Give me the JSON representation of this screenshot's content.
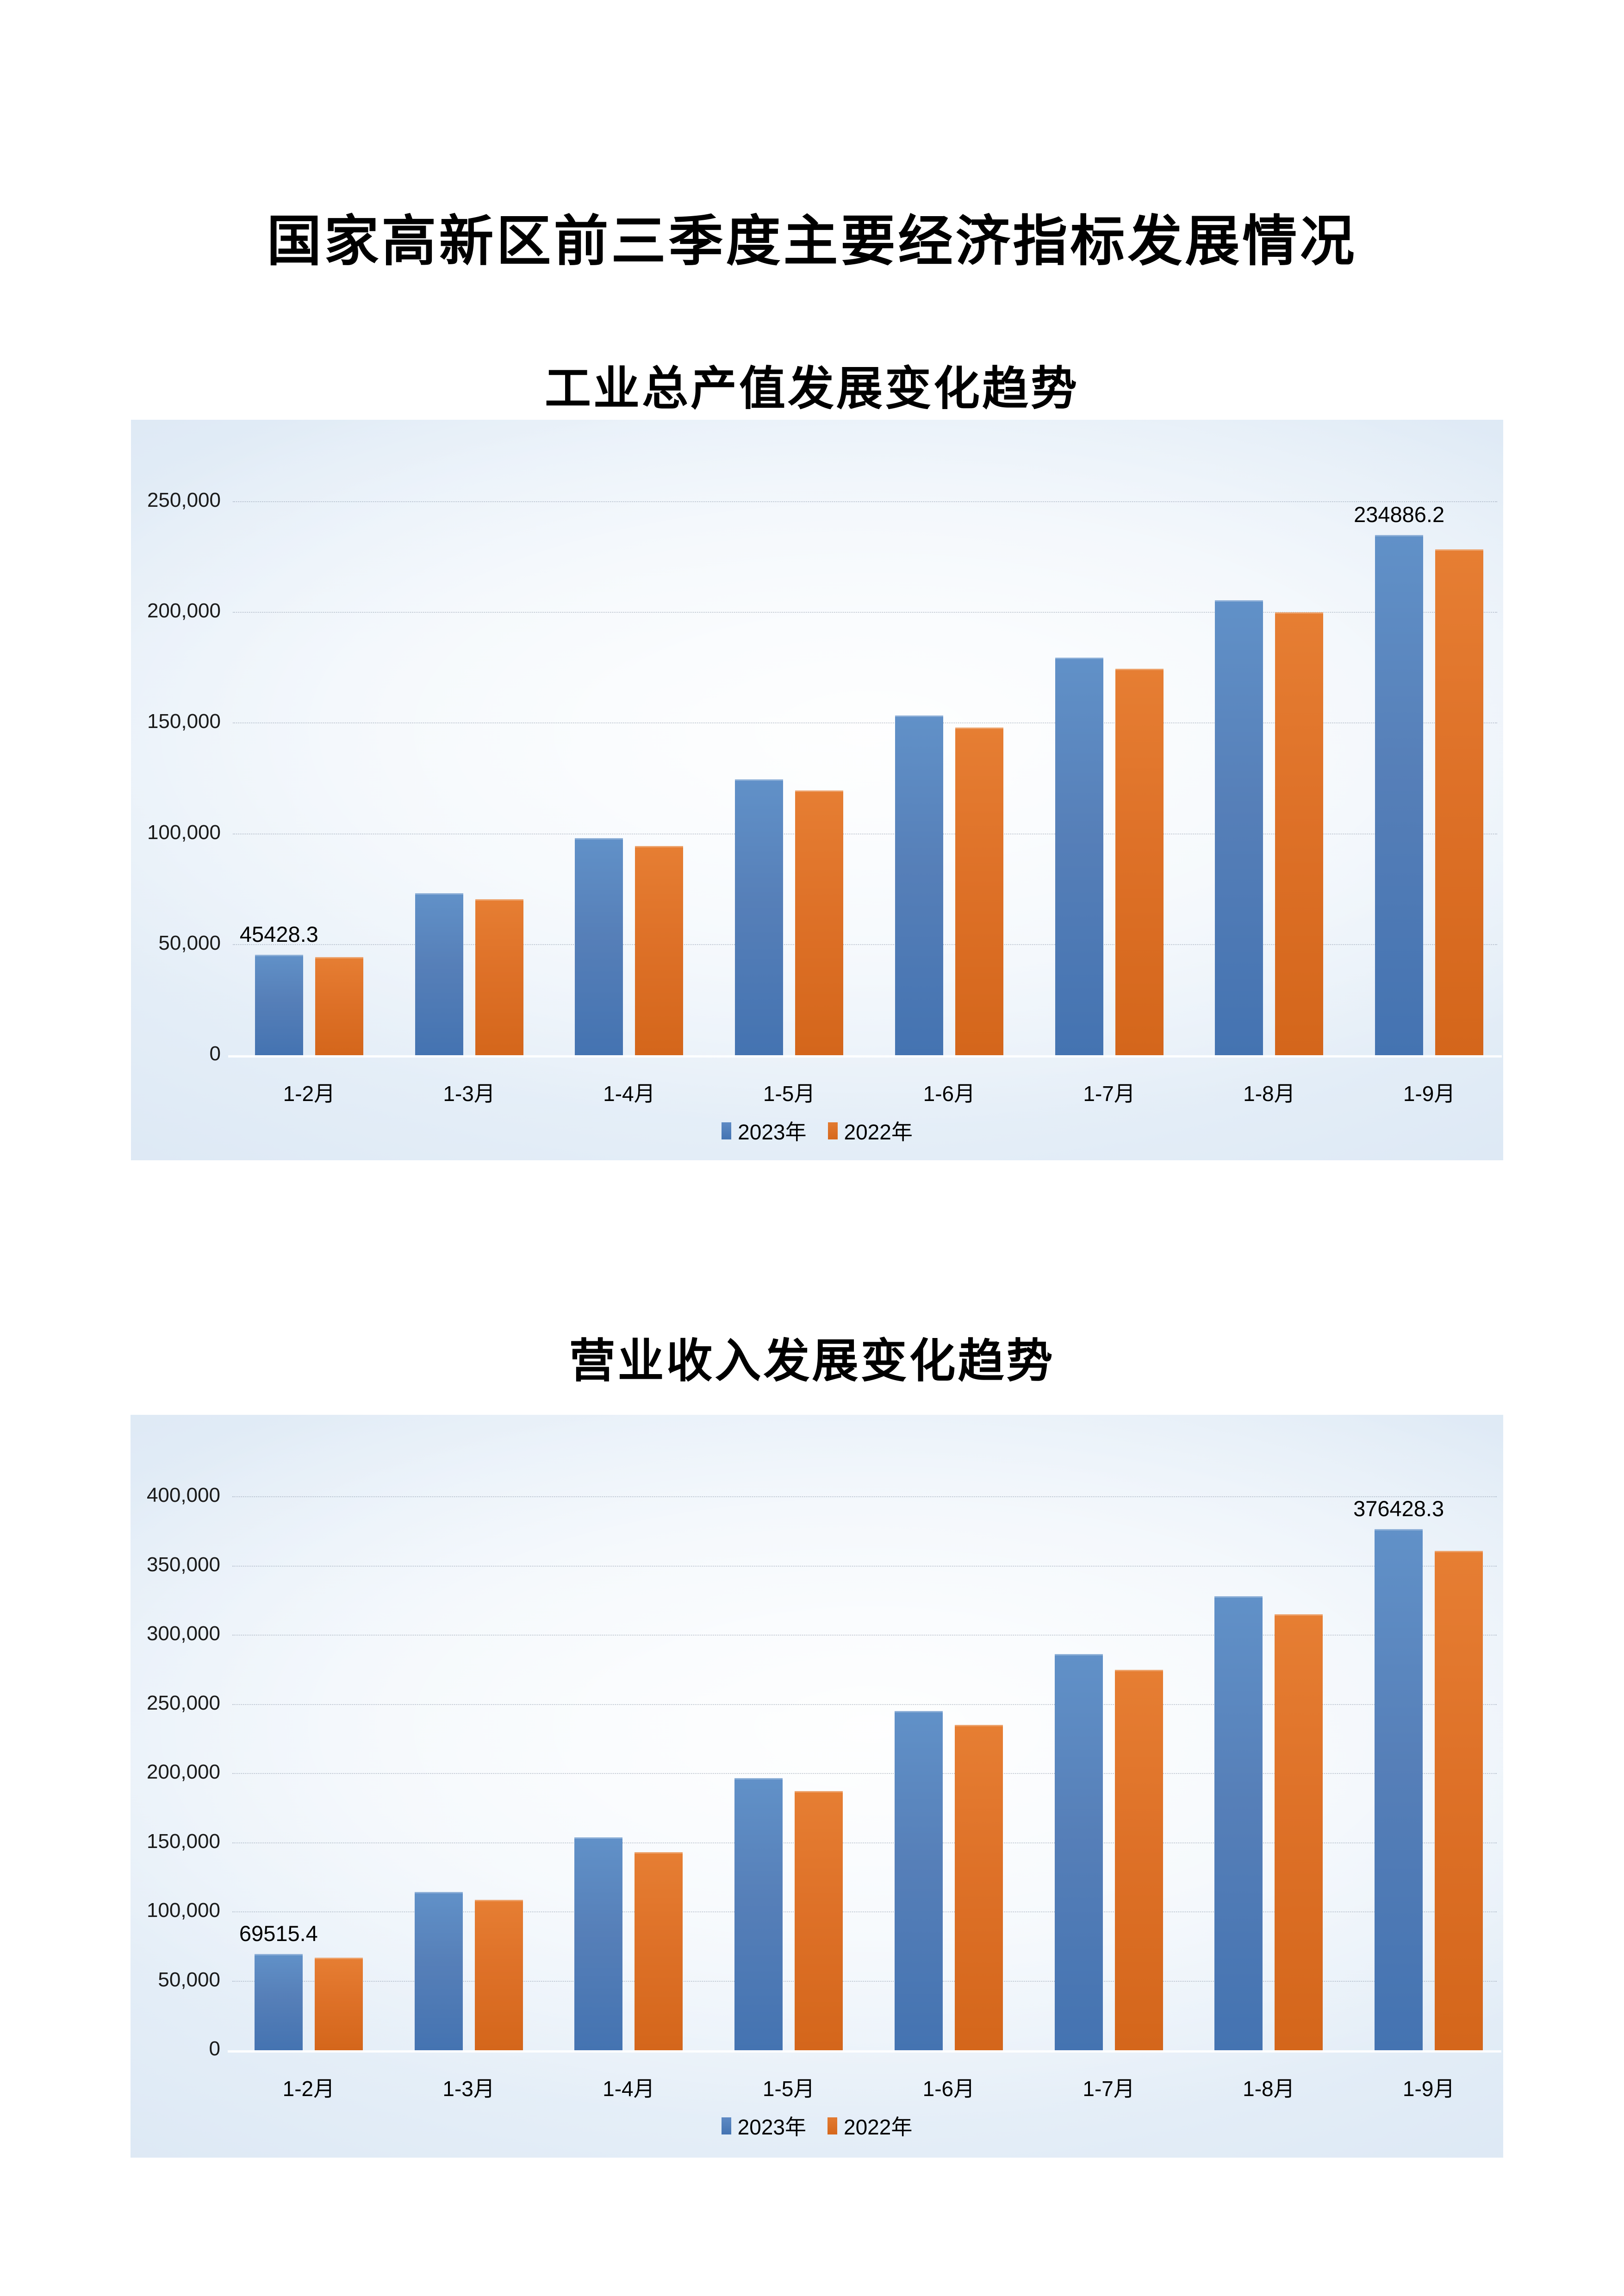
{
  "page": {
    "title": "国家高新区前三季度主要经济指标发展情况",
    "background_color": "#FFFFFF"
  },
  "colors": {
    "series_2023": "#4F7FBC",
    "series_2022": "#DE7128",
    "panel_edge": "#C7D8EB",
    "panel_center": "#F8FBFE",
    "gridline": "#8D99AB",
    "text": "#111111"
  },
  "chart_data": [
    {
      "type": "bar",
      "title": "工业总产值发展变化趋势",
      "categories": [
        "1-2月",
        "1-3月",
        "1-4月",
        "1-5月",
        "1-6月",
        "1-7月",
        "1-8月",
        "1-9月"
      ],
      "series": [
        {
          "name": "2023年",
          "color": "#4F7FBC",
          "values": [
            45428.3,
            73200,
            98000,
            124500,
            153500,
            179500,
            205500,
            234886.2
          ]
        },
        {
          "name": "2022年",
          "color": "#DE7128",
          "values": [
            44300,
            70500,
            94500,
            119500,
            148000,
            174500,
            200000,
            228500
          ]
        }
      ],
      "data_labels": [
        {
          "series": 0,
          "index": 0,
          "text": "45428.3"
        },
        {
          "series": 0,
          "index": 7,
          "text": "234886.2"
        }
      ],
      "ylim": [
        0,
        250000
      ],
      "yticks": [
        "0",
        "50,000",
        "100,000",
        "150,000",
        "200,000",
        "250,000"
      ],
      "grid": true,
      "legend_position": "bottom"
    },
    {
      "type": "bar",
      "title": "营业收入发展变化趋势",
      "categories": [
        "1-2月",
        "1-3月",
        "1-4月",
        "1-5月",
        "1-6月",
        "1-7月",
        "1-8月",
        "1-9月"
      ],
      "series": [
        {
          "name": "2023年",
          "color": "#4F7FBC",
          "values": [
            69515.4,
            114400,
            153800,
            196800,
            245000,
            286300,
            328000,
            376428.3
          ]
        },
        {
          "name": "2022年",
          "color": "#DE7128",
          "values": [
            67000,
            108700,
            143300,
            187200,
            235000,
            275000,
            315100,
            361000
          ]
        }
      ],
      "data_labels": [
        {
          "series": 0,
          "index": 0,
          "text": "69515.4"
        },
        {
          "series": 0,
          "index": 7,
          "text": "376428.3"
        }
      ],
      "ylim": [
        0,
        400000
      ],
      "yticks": [
        "0",
        "50,000",
        "100,000",
        "150,000",
        "200,000",
        "250,000",
        "300,000",
        "350,000",
        "400,000"
      ],
      "grid": true,
      "legend_position": "bottom"
    }
  ]
}
